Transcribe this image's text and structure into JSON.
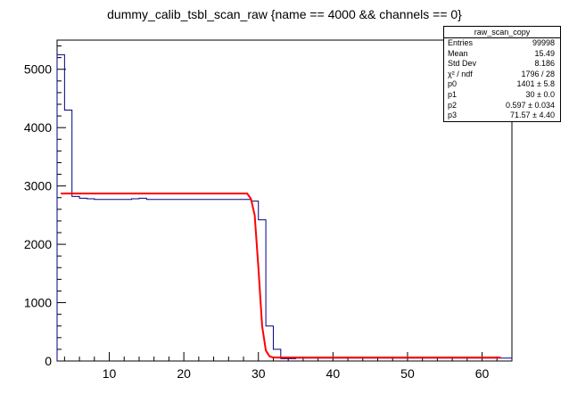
{
  "chart_data": {
    "type": "histogram",
    "title": "dummy_calib_tsbl_scan_raw {name == 4000 && channels == 0}",
    "xlabel": "",
    "ylabel": "",
    "xlim": [
      3,
      64
    ],
    "ylim": [
      0,
      5500
    ],
    "xticks": [
      10,
      20,
      30,
      40,
      50,
      60
    ],
    "yticks": [
      0,
      1000,
      2000,
      3000,
      4000,
      5000
    ],
    "grid": false,
    "histogram": {
      "color": "#000080",
      "bin_edges": [
        3,
        4,
        5,
        6,
        7,
        8,
        9,
        10,
        11,
        12,
        13,
        14,
        15,
        16,
        17,
        18,
        19,
        20,
        21,
        22,
        23,
        24,
        25,
        26,
        27,
        28,
        29,
        30,
        31,
        32,
        33,
        34,
        35,
        36,
        37,
        38,
        39,
        40,
        41,
        42,
        43,
        44,
        45,
        46,
        47,
        48,
        49,
        50,
        51,
        52,
        53,
        54,
        55,
        56,
        57,
        58,
        59,
        60,
        61,
        62,
        63,
        64
      ],
      "contents": [
        5250,
        4300,
        2820,
        2790,
        2780,
        2770,
        2770,
        2770,
        2770,
        2770,
        2780,
        2790,
        2770,
        2770,
        2770,
        2770,
        2770,
        2770,
        2770,
        2770,
        2770,
        2770,
        2770,
        2770,
        2770,
        2770,
        2740,
        2420,
        600,
        200,
        40,
        40,
        50,
        50,
        50,
        50,
        50,
        50,
        50,
        50,
        50,
        50,
        50,
        50,
        50,
        50,
        50,
        50,
        50,
        50,
        50,
        50,
        50,
        50,
        50,
        50,
        50,
        50,
        50,
        50,
        50
      ]
    },
    "fit": {
      "color": "#ff0000",
      "x": [
        3.5,
        28.5,
        29.0,
        29.5,
        30.0,
        30.5,
        31.0,
        31.5,
        32.0,
        62.5
      ],
      "y": [
        2870,
        2870,
        2780,
        2500,
        1600,
        600,
        180,
        80,
        60,
        60
      ]
    },
    "stats": {
      "title": "raw_scan_copy",
      "rows": [
        {
          "label": "Entries",
          "value": "99998"
        },
        {
          "label": "Mean",
          "value": "15.49"
        },
        {
          "label": "Std Dev",
          "value": "8.186"
        },
        {
          "label": "χ² / ndf",
          "value": "1796 / 28"
        },
        {
          "label": "p0",
          "value": "1401 ± 5.8"
        },
        {
          "label": "p1",
          "value": "30 ± 0.0"
        },
        {
          "label": "p2",
          "value": "0.597 ± 0.034"
        },
        {
          "label": "p3",
          "value": "71.57 ± 4.40"
        }
      ]
    }
  }
}
